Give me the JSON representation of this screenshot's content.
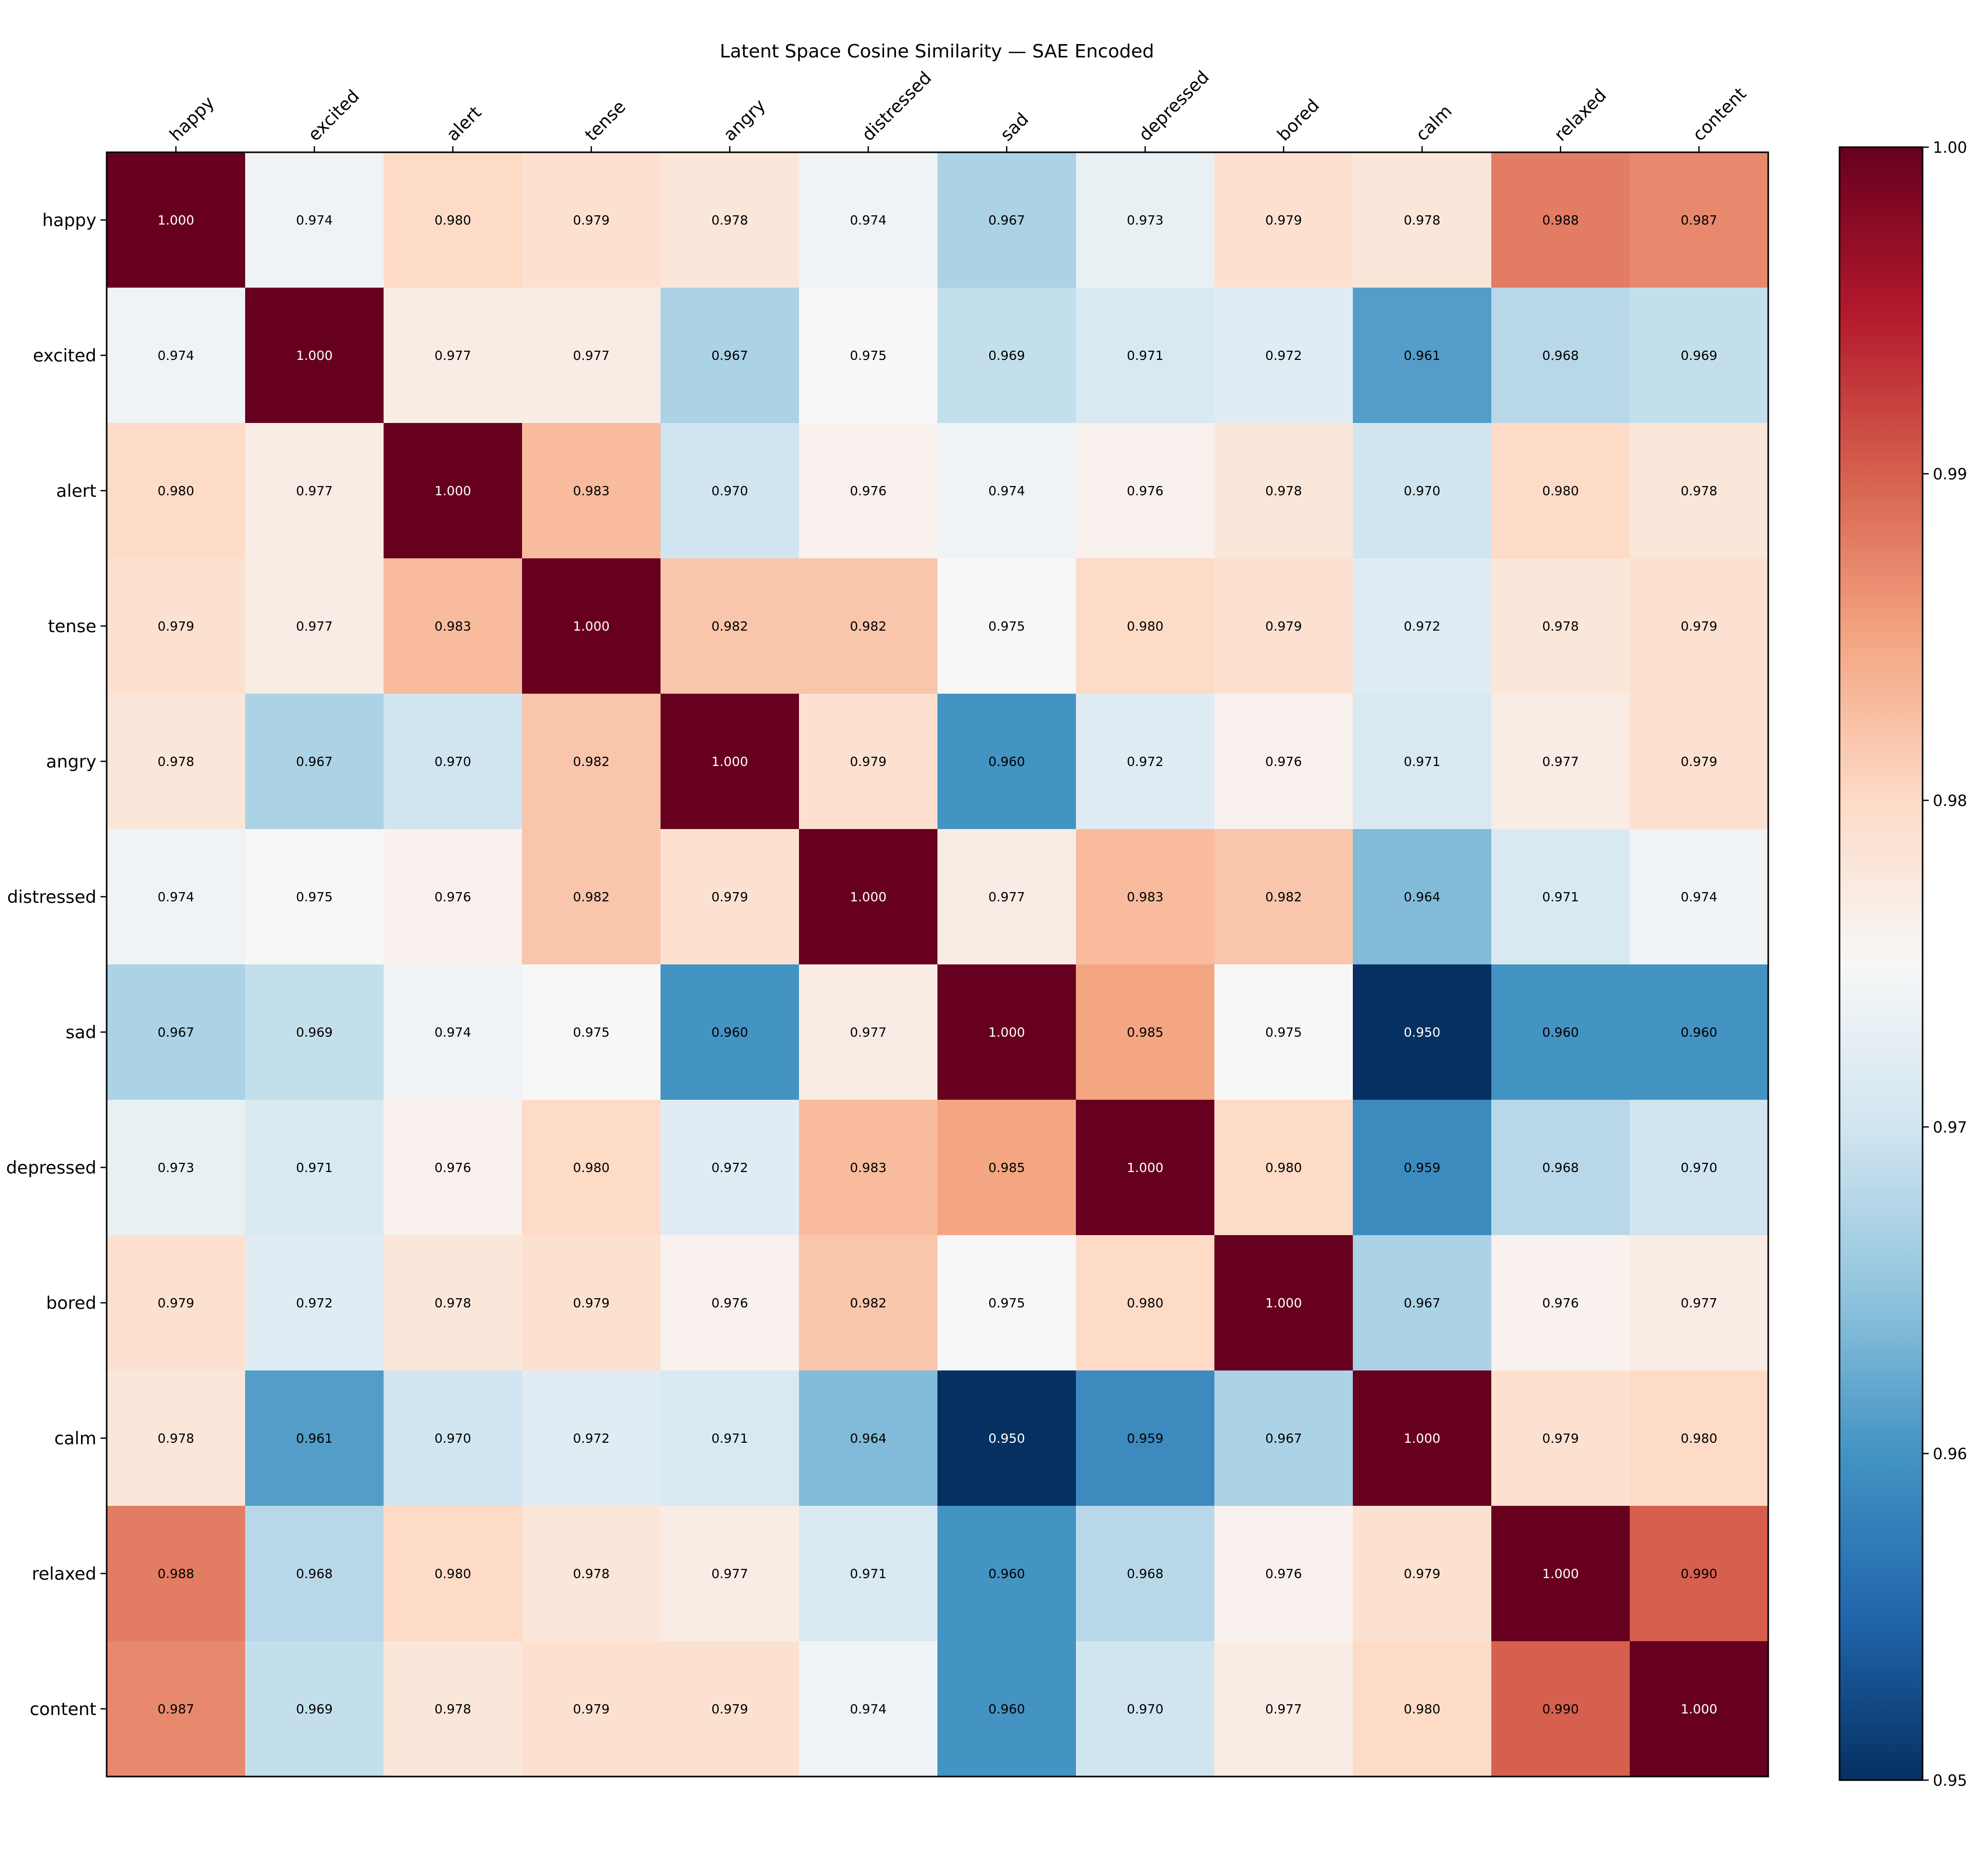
{
  "chart_data": {
    "type": "heatmap",
    "title": "Latent Space Cosine Similarity — SAE Encoded",
    "colormap": "RdBu_r",
    "labels": [
      "happy",
      "excited",
      "alert",
      "tense",
      "angry",
      "distressed",
      "sad",
      "depressed",
      "bored",
      "calm",
      "relaxed",
      "content"
    ],
    "values": [
      [
        1.0,
        0.974,
        0.98,
        0.979,
        0.978,
        0.974,
        0.967,
        0.973,
        0.979,
        0.978,
        0.988,
        0.987
      ],
      [
        0.974,
        1.0,
        0.977,
        0.977,
        0.967,
        0.975,
        0.969,
        0.971,
        0.972,
        0.961,
        0.968,
        0.969
      ],
      [
        0.98,
        0.977,
        1.0,
        0.983,
        0.97,
        0.976,
        0.974,
        0.976,
        0.978,
        0.97,
        0.98,
        0.978
      ],
      [
        0.979,
        0.977,
        0.983,
        1.0,
        0.982,
        0.982,
        0.975,
        0.98,
        0.979,
        0.972,
        0.978,
        0.979
      ],
      [
        0.978,
        0.967,
        0.97,
        0.982,
        1.0,
        0.979,
        0.96,
        0.972,
        0.976,
        0.971,
        0.977,
        0.979
      ],
      [
        0.974,
        0.975,
        0.976,
        0.982,
        0.979,
        1.0,
        0.977,
        0.983,
        0.982,
        0.964,
        0.971,
        0.974
      ],
      [
        0.967,
        0.969,
        0.974,
        0.975,
        0.96,
        0.977,
        1.0,
        0.985,
        0.975,
        0.95,
        0.96,
        0.96
      ],
      [
        0.973,
        0.971,
        0.976,
        0.98,
        0.972,
        0.983,
        0.985,
        1.0,
        0.98,
        0.959,
        0.968,
        0.97
      ],
      [
        0.979,
        0.972,
        0.978,
        0.979,
        0.976,
        0.982,
        0.975,
        0.98,
        1.0,
        0.967,
        0.976,
        0.977
      ],
      [
        0.978,
        0.961,
        0.97,
        0.972,
        0.971,
        0.964,
        0.95,
        0.959,
        0.967,
        1.0,
        0.979,
        0.98
      ],
      [
        0.988,
        0.968,
        0.98,
        0.978,
        0.977,
        0.971,
        0.96,
        0.968,
        0.976,
        0.979,
        1.0,
        0.99
      ],
      [
        0.987,
        0.969,
        0.978,
        0.979,
        0.979,
        0.974,
        0.96,
        0.97,
        0.977,
        0.98,
        0.99,
        1.0
      ]
    ],
    "value_format": "3 decimals",
    "colorbar": {
      "range": [
        0.95,
        1.0
      ],
      "ticks": [
        0.95,
        0.96,
        0.97,
        0.98,
        0.99,
        1.0
      ],
      "tick_labels": [
        "0.95",
        "0.96",
        "0.97",
        "0.98",
        "0.99",
        "1.00"
      ]
    },
    "xlabel": "",
    "ylabel": "",
    "x_tick_position": "top",
    "x_tick_rotation_deg": 45,
    "grid": false,
    "legend": "colorbar at right"
  }
}
